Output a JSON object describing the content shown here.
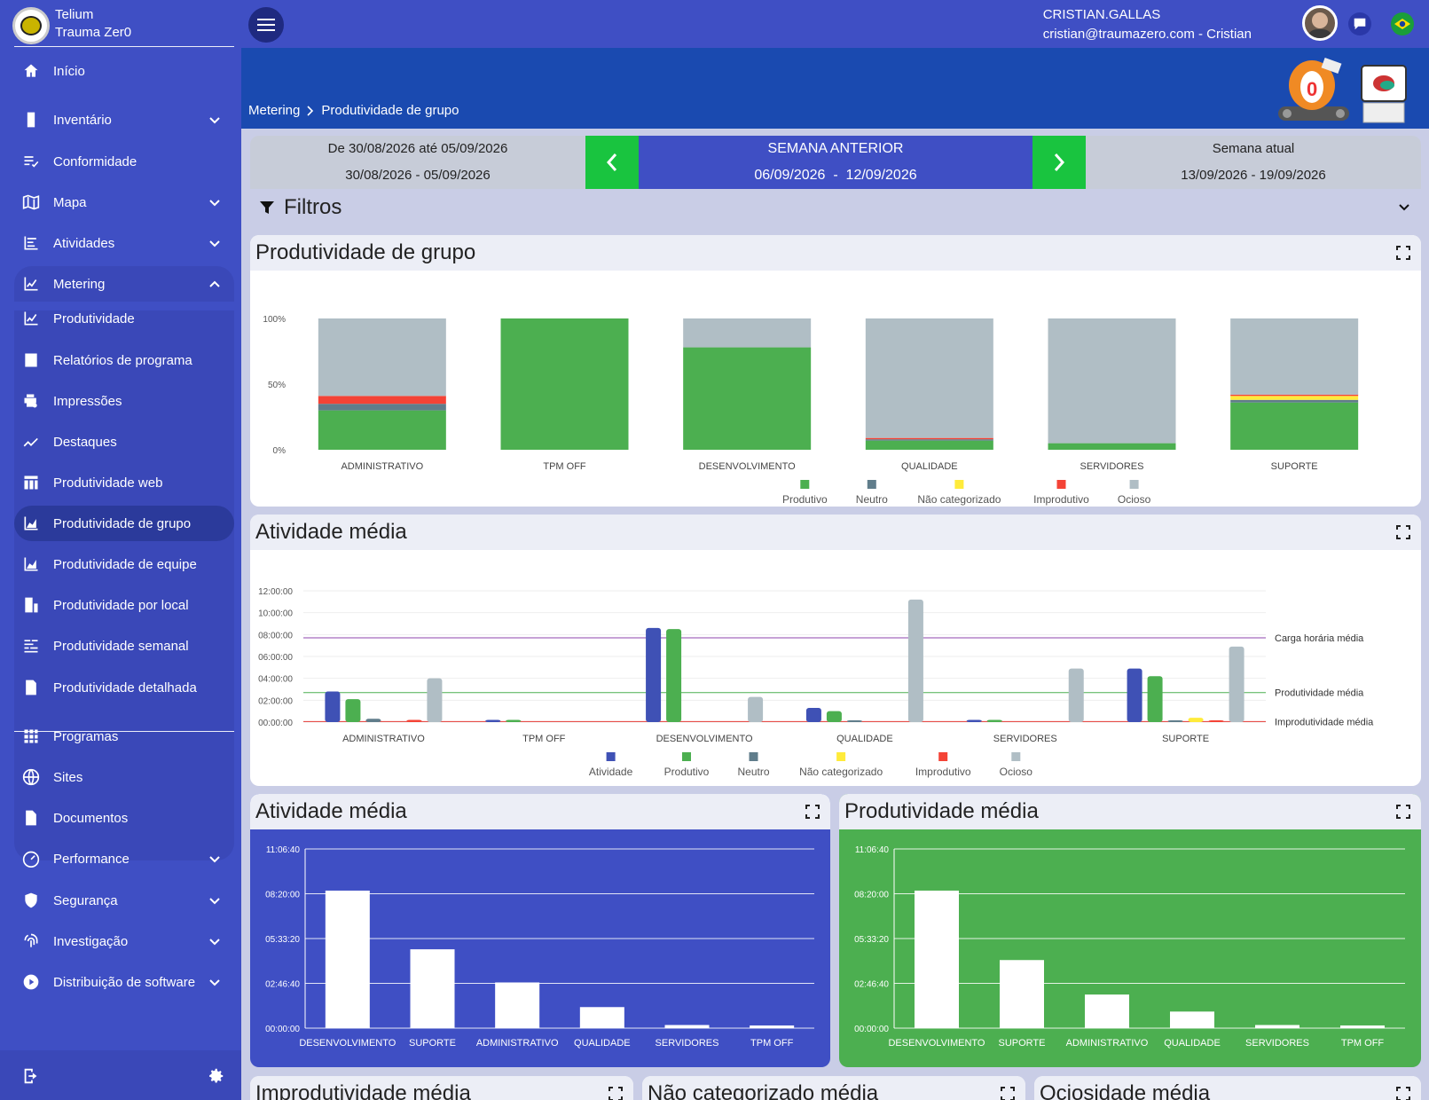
{
  "brand": {
    "line1": "Telium",
    "line2": "Trauma Zer0"
  },
  "sidebar": {
    "items": [
      {
        "label": "Início",
        "icon": "home-icon"
      },
      {
        "label": "Inventário",
        "icon": "server-icon"
      },
      {
        "label": "Conformidade",
        "icon": "checklist-icon"
      },
      {
        "label": "Mapa",
        "icon": "map-icon"
      },
      {
        "label": "Atividades",
        "icon": "activity-list-icon"
      },
      {
        "label": "Metering",
        "icon": "chart-line-icon"
      },
      {
        "label": "Produtividade",
        "icon": "chart-line-icon"
      },
      {
        "label": "Relatórios de programa",
        "icon": "bar-report-icon"
      },
      {
        "label": "Impressões",
        "icon": "print-search-icon"
      },
      {
        "label": "Destaques",
        "icon": "trend-icon"
      },
      {
        "label": "Produtividade web",
        "icon": "web-table-icon"
      },
      {
        "label": "Produtividade de grupo",
        "icon": "area-chart-icon"
      },
      {
        "label": "Produtividade de equipe",
        "icon": "area-chart-icon"
      },
      {
        "label": "Produtividade por local",
        "icon": "building-icon"
      },
      {
        "label": "Produtividade semanal",
        "icon": "weekly-icon"
      },
      {
        "label": "Produtividade detalhada",
        "icon": "report-icon"
      },
      {
        "label": "Programas",
        "icon": "grid-icon"
      },
      {
        "label": "Sites",
        "icon": "globe-icon"
      },
      {
        "label": "Documentos",
        "icon": "document-icon"
      },
      {
        "label": "Performance",
        "icon": "gauge-icon"
      },
      {
        "label": "Segurança",
        "icon": "shield-icon"
      },
      {
        "label": "Investigação",
        "icon": "fingerprint-icon"
      },
      {
        "label": "Distribuição de software",
        "icon": "play-icon"
      }
    ]
  },
  "user": {
    "name": "CRISTIAN.GALLAS",
    "email": "cristian@traumazero.com - Cristian"
  },
  "breadcrumb": {
    "root": "Metering",
    "current": "Produtividade de grupo"
  },
  "week": {
    "prev_title": "De 30/08/2026 até 05/09/2026",
    "prev_range": "30/08/2026 - 05/09/2026",
    "cur_title": "SEMANA ANTERIOR",
    "cur_range": "06/09/2026  -  12/09/2026",
    "next_title": "Semana atual",
    "next_range": "13/09/2026 - 19/09/2026"
  },
  "filters": {
    "label": "Filtros"
  },
  "colors": {
    "produtivo": "#4caf50",
    "neutro": "#607d8b",
    "nao_categorizado": "#ffeb3b",
    "improdutivo": "#f44336",
    "ocioso": "#b0bec5",
    "atividade": "#3f51b5"
  },
  "cards": {
    "group": "Produtividade de grupo",
    "avg_activity": "Atividade média",
    "avg_activity_small": "Atividade média",
    "avg_productivity": "Produtividade média",
    "avg_unproductive": "Improdutividade média",
    "avg_uncategorized": "Não categorizado média",
    "avg_idle": "Ociosidade média"
  },
  "chart_data": [
    {
      "type": "bar",
      "stacked": true,
      "title": "Produtividade de grupo",
      "categories": [
        "ADMINISTRATIVO",
        "TPM OFF",
        "DESENVOLVIMENTO",
        "QUALIDADE",
        "SERVIDORES",
        "SUPORTE"
      ],
      "y_ticks": [
        "0%",
        "50%",
        "100%"
      ],
      "ylim": [
        0,
        100
      ],
      "legend_position": "bottom",
      "series": [
        {
          "name": "Produtivo",
          "values": [
            30,
            100,
            78,
            7,
            5,
            36
          ]
        },
        {
          "name": "Neutro",
          "values": [
            5,
            0,
            0,
            1,
            0,
            2
          ]
        },
        {
          "name": "Não categorizado",
          "values": [
            0,
            0,
            0,
            0,
            0,
            3
          ]
        },
        {
          "name": "Improdutivo",
          "values": [
            6,
            0,
            0,
            1,
            0,
            1
          ]
        },
        {
          "name": "Ocioso",
          "values": [
            59,
            0,
            22,
            91,
            95,
            58
          ]
        }
      ]
    },
    {
      "type": "bar",
      "title": "Atividade média",
      "categories": [
        "ADMINISTRATIVO",
        "TPM OFF",
        "DESENVOLVIMENTO",
        "QUALIDADE",
        "SERVIDORES",
        "SUPORTE"
      ],
      "y_ticks": [
        "00:00:00",
        "02:00:00",
        "04:00:00",
        "06:00:00",
        "08:00:00",
        "10:00:00",
        "12:00:00"
      ],
      "ylim": [
        0,
        12
      ],
      "legend_position": "bottom",
      "series": [
        {
          "name": "Atividade",
          "values": [
            2.8,
            0.2,
            8.6,
            1.3,
            0.2,
            4.9
          ]
        },
        {
          "name": "Produtivo",
          "values": [
            2.1,
            0.2,
            8.5,
            1.0,
            0.2,
            4.2
          ]
        },
        {
          "name": "Neutro",
          "values": [
            0.3,
            0,
            0,
            0.1,
            0,
            0.1
          ]
        },
        {
          "name": "Não categorizado",
          "values": [
            0,
            0,
            0,
            0,
            0,
            0.4
          ]
        },
        {
          "name": "Improdutivo",
          "values": [
            0.2,
            0,
            0,
            0,
            0,
            0.1
          ]
        },
        {
          "name": "Ocioso",
          "values": [
            4.0,
            0,
            2.3,
            11.2,
            4.9,
            6.9
          ]
        }
      ],
      "reference_lines": [
        {
          "name": "Carga horária média",
          "value": 7.7
        },
        {
          "name": "Produtividade média",
          "value": 2.7
        },
        {
          "name": "Improdutividade média",
          "value": 0.05
        }
      ]
    },
    {
      "type": "bar",
      "title": "Atividade média",
      "categories": [
        "DESENVOLVIMENTO",
        "SUPORTE",
        "ADMINISTRATIVO",
        "QUALIDADE",
        "SERVIDORES",
        "TPM OFF"
      ],
      "y_ticks": [
        "00:00:00",
        "02:46:40",
        "05:33:20",
        "08:20:00",
        "11:06:40"
      ],
      "ylim": [
        0,
        40000
      ],
      "values": [
        30700,
        17600,
        10200,
        4700,
        700,
        600
      ]
    },
    {
      "type": "bar",
      "title": "Produtividade média",
      "categories": [
        "DESENVOLVIMENTO",
        "SUPORTE",
        "ADMINISTRATIVO",
        "QUALIDADE",
        "SERVIDORES",
        "TPM OFF"
      ],
      "y_ticks": [
        "00:00:00",
        "02:46:40",
        "05:33:20",
        "08:20:00",
        "11:06:40"
      ],
      "ylim": [
        0,
        40000
      ],
      "values": [
        30700,
        15200,
        7500,
        3700,
        700,
        600
      ]
    }
  ]
}
